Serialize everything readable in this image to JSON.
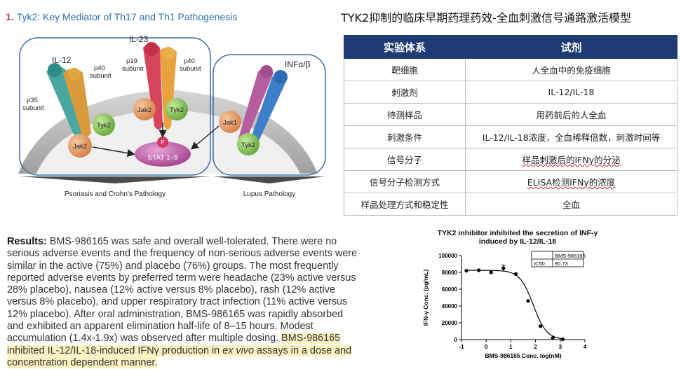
{
  "figure": {
    "number": "1.",
    "title": "Tyk2: Key Mediator of Th17 and Th1 Pathogenesis",
    "labels": {
      "il12": "IL-12",
      "il23": "IL-23",
      "p40_left": "p40",
      "p40_right": "p40",
      "subunit": "subunit",
      "p35": "p35",
      "p19": "p19",
      "infab": "INFα/β",
      "jak2_a": "Jak2",
      "jak2_b": "Jak2",
      "tyk2_a": "Tyk2",
      "tyk2_b": "Tyk2",
      "jak1": "Jak1",
      "tyk2_c": "Tyk2",
      "p": "P",
      "stat": "STAT 1–5",
      "psoriasis": "Psoriasis and Crohn's Pathology",
      "lupus": "Lupus Pathology"
    },
    "colors": {
      "jak": "#e39a68",
      "tyk2": "#8cc85a",
      "stat": "#c15ba5",
      "box": "#3c6aa6"
    }
  },
  "right_table": {
    "title": "TYK2抑制的临床早期药理药效-全血刺激信号通路激活模型",
    "headers": [
      "实验体系",
      "试剂"
    ],
    "rows": [
      [
        "靶细胞",
        "人全血中的免疫细胞"
      ],
      [
        "刺激剂",
        "IL-12/IL-18"
      ],
      [
        "待测样品",
        "用药前后的人全血"
      ],
      [
        "刺激条件",
        "IL-12/IL-18浓度，全血稀释倍数，刺激时间等"
      ],
      [
        "信号分子",
        "样品刺激后的IFNγ的分泌"
      ],
      [
        "信号分子检测方式",
        "ELISA检测IFNγ的浓度"
      ],
      [
        "样品处理方式和稳定性",
        "全血"
      ]
    ]
  },
  "results": {
    "label": "Results:",
    "text": "BMS-986165 was safe and overall well-tolerated. There were no serious adverse events and the frequency of non-serious adverse events were similar in the active (75%) and placebo (76%) groups. The most frequently reported adverse events by preferred term were headache (23% active versus 28% placebo), nausea (12% active versus 8% placebo), rash (12% active versus 8% placebo), and upper respiratory tract infection (11% active versus 12% placebo). After oral administration, BMS-986165 was rapidly absorbed and exhibited an apparent elimination half-life of 8–15 hours. Modest accumulation (1.4x-1.9x) was observed after multiple dosing. ",
    "highlight_a": "BMS-986165 inhibited IL-12/IL-18-induced IFNγ production in ",
    "highlight_italic": "ex vivo",
    "highlight_b": " assays in a dose and concentration dependent manner."
  },
  "chart_data": {
    "type": "scatter",
    "title": "TYK2 inhibitor inhibited the secretion of INF-γ induced by IL-12/IL-18",
    "xlabel": "BMS-986165 Conc. log(nM)",
    "ylabel": "IFN-γ Conc. (pg/mL)",
    "xlim": [
      -1,
      4
    ],
    "ylim": [
      0,
      100000
    ],
    "xticks": [
      -1,
      0,
      1,
      2,
      3,
      4
    ],
    "yticks": [
      0,
      20000,
      40000,
      60000,
      80000,
      100000
    ],
    "ytick_labels": [
      "0",
      "20000",
      "40000",
      "60000",
      "80000",
      "100000"
    ],
    "points": [
      {
        "x": -0.8,
        "y": 82000,
        "err": 0
      },
      {
        "x": -0.3,
        "y": 82500,
        "err": 0
      },
      {
        "x": 0.2,
        "y": 80000,
        "err": 0
      },
      {
        "x": 0.7,
        "y": 85000,
        "err": 3500
      },
      {
        "x": 1.2,
        "y": 78000,
        "err": 0
      },
      {
        "x": 1.7,
        "y": 46000,
        "err": 0
      },
      {
        "x": 2.2,
        "y": 16000,
        "err": 0
      },
      {
        "x": 2.7,
        "y": 2000,
        "err": 0
      },
      {
        "x": 3.1,
        "y": 500,
        "err": 0
      }
    ],
    "fit": {
      "top": 82500,
      "bottom": 0,
      "logIC50": 1.907,
      "hill": 1.6
    },
    "legend_table": {
      "header": "BMS-986165",
      "row_label": "IC50",
      "row_value": "80.73"
    }
  }
}
